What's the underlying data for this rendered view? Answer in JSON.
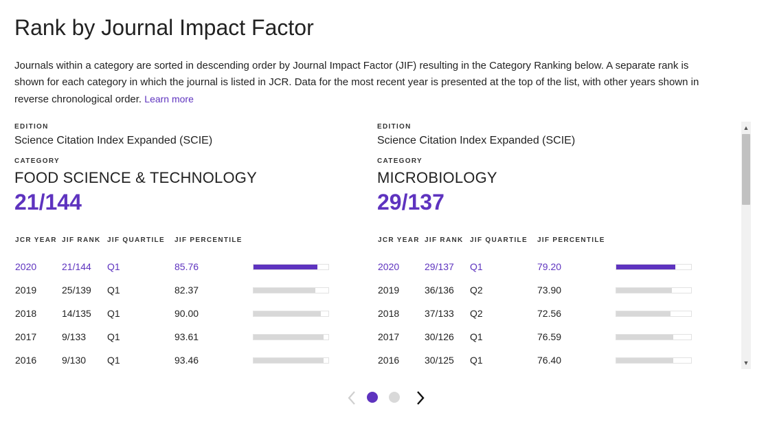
{
  "page": {
    "title": "Rank by Journal Impact Factor",
    "description": "Journals within a category are sorted in descending order by Journal Impact Factor (JIF) resulting in the Category Ranking below. A separate rank is shown for each category in which the journal is listed in JCR. Data for the most recent year is presented at the top of the list, with other years shown in reverse chronological order.",
    "learn_more": "Learn more"
  },
  "labels": {
    "edition": "EDITION",
    "category": "CATEGORY",
    "col_year": "JCR YEAR",
    "col_rank": "JIF RANK",
    "col_quartile": "JIF QUARTILE",
    "col_percentile": "JIF PERCENTILE"
  },
  "cards": [
    {
      "edition": "Science Citation Index Expanded (SCIE)",
      "category": "FOOD SCIENCE & TECHNOLOGY",
      "rank": "21/144",
      "rows": [
        {
          "year": "2020",
          "rank": "21/144",
          "quartile": "Q1",
          "percentile": "85.76",
          "pct": 85.76
        },
        {
          "year": "2019",
          "rank": "25/139",
          "quartile": "Q1",
          "percentile": "82.37",
          "pct": 82.37
        },
        {
          "year": "2018",
          "rank": "14/135",
          "quartile": "Q1",
          "percentile": "90.00",
          "pct": 90.0
        },
        {
          "year": "2017",
          "rank": "9/133",
          "quartile": "Q1",
          "percentile": "93.61",
          "pct": 93.61
        },
        {
          "year": "2016",
          "rank": "9/130",
          "quartile": "Q1",
          "percentile": "93.46",
          "pct": 93.46
        }
      ]
    },
    {
      "edition": "Science Citation Index Expanded (SCIE)",
      "category": "MICROBIOLOGY",
      "rank": "29/137",
      "rows": [
        {
          "year": "2020",
          "rank": "29/137",
          "quartile": "Q1",
          "percentile": "79.20",
          "pct": 79.2
        },
        {
          "year": "2019",
          "rank": "36/136",
          "quartile": "Q2",
          "percentile": "73.90",
          "pct": 73.9
        },
        {
          "year": "2018",
          "rank": "37/133",
          "quartile": "Q2",
          "percentile": "72.56",
          "pct": 72.56
        },
        {
          "year": "2017",
          "rank": "30/126",
          "quartile": "Q1",
          "percentile": "76.59",
          "pct": 76.59
        },
        {
          "year": "2016",
          "rank": "30/125",
          "quartile": "Q1",
          "percentile": "76.40",
          "pct": 76.4
        }
      ]
    }
  ],
  "pager": {
    "pages": 2,
    "current": 1
  },
  "colors": {
    "accent": "#5e33bf",
    "bar_track": "#d8d8d8",
    "dot_inactive": "#d9d9d9"
  },
  "icons": {
    "prev": "chevron-left-icon",
    "next": "chevron-right-icon",
    "scroll_up": "caret-up-icon",
    "scroll_down": "caret-down-icon"
  }
}
